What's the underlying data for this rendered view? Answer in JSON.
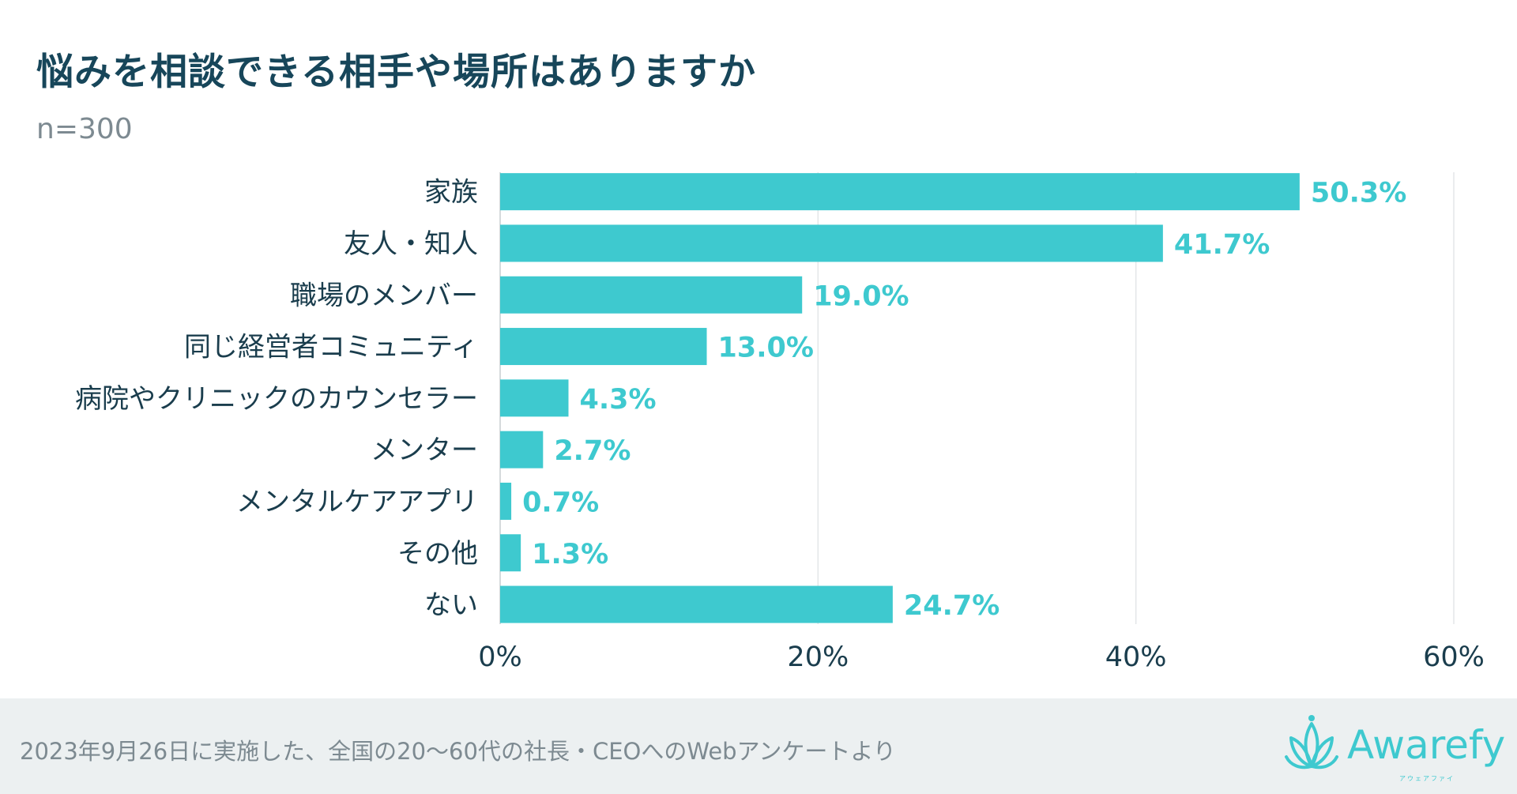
{
  "title": "悩みを相談できる相手や場所はありますか",
  "sample_size": "n=300",
  "footnote": "2023年9月26日に実施した、全国の20〜60代の社長・CEOへのWebアンケートより",
  "brand": {
    "name": "Awarefy",
    "kana": "アウェアファイ",
    "color": "#3ec9cf"
  },
  "colors": {
    "bar": "#3ec9cf",
    "label": "#3ec9cf",
    "category": "#1a3d4d",
    "grid": "#e3e6e8"
  },
  "chart_data": {
    "type": "bar",
    "orientation": "horizontal",
    "title": "悩みを相談できる相手や場所はありますか",
    "categories": [
      "家族",
      "友人・知人",
      "職場のメンバー",
      "同じ経営者コミュニティ",
      "病院やクリニックのカウンセラー",
      "メンター",
      "メンタルケアアプリ",
      "その他",
      "ない"
    ],
    "values": [
      50.3,
      41.7,
      19.0,
      13.0,
      4.3,
      2.7,
      0.7,
      1.3,
      24.7
    ],
    "value_labels": [
      "50.3%",
      "41.7%",
      "19.0%",
      "13.0%",
      "4.3%",
      "2.7%",
      "0.7%",
      "1.3%",
      "24.7%"
    ],
    "xlim": [
      0,
      60
    ],
    "xticks": [
      0,
      20,
      40,
      60
    ],
    "xtick_labels": [
      "0%",
      "20%",
      "40%",
      "60%"
    ],
    "xlabel": "",
    "ylabel": "",
    "grid": true
  }
}
